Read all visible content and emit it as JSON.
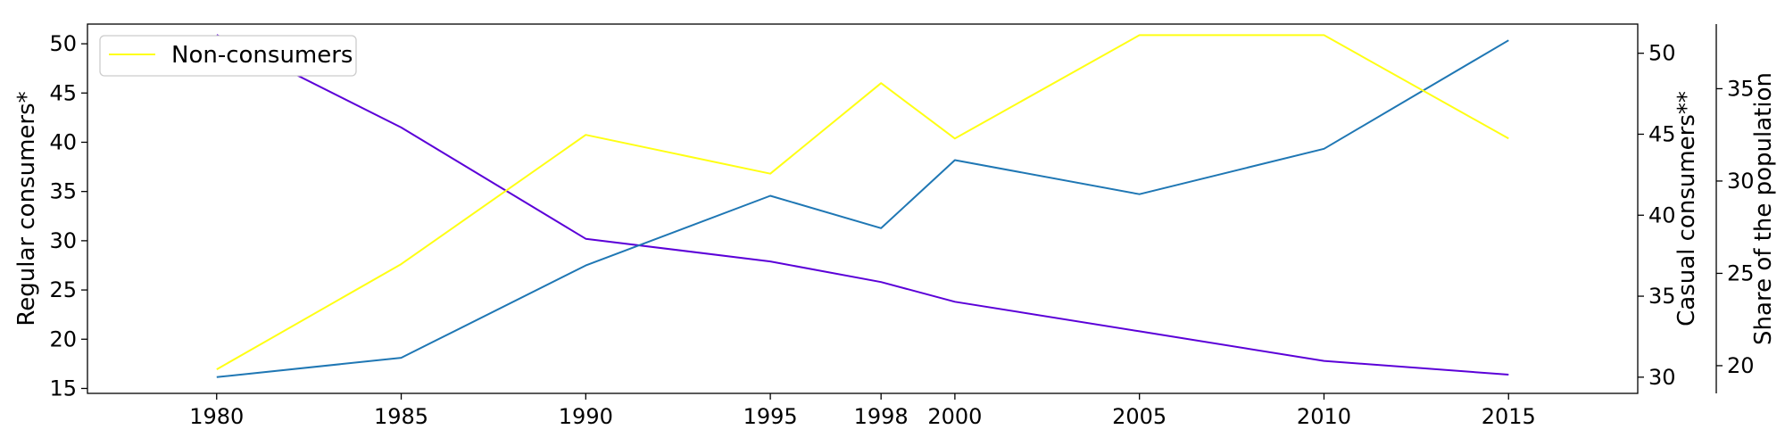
{
  "chart_data": {
    "type": "line",
    "x": [
      1980,
      1985,
      1990,
      1995,
      1998,
      2000,
      2005,
      2010,
      2015
    ],
    "xticks": [
      "1980",
      "1985",
      "1990",
      "1995",
      "1998",
      "2000",
      "2005",
      "2010",
      "2015"
    ],
    "xlim": [
      1976.5,
      2018.5
    ],
    "title": "",
    "xlabel": "",
    "grid": false,
    "legend_position": "top-left",
    "axes": {
      "left": {
        "label": "Regular consumers*",
        "ylim": [
          14.5,
          52.0
        ],
        "ticks": [
          "15",
          "20",
          "25",
          "30",
          "35",
          "40",
          "45",
          "50"
        ]
      },
      "right1": {
        "label": "Casual consumers**",
        "ylim": [
          29.0,
          51.8
        ],
        "ticks": [
          "30",
          "35",
          "40",
          "45",
          "50"
        ]
      },
      "right2": {
        "label": "Share of the population",
        "ylim": [
          18.5,
          38.5
        ],
        "ticks": [
          "20",
          "25",
          "30",
          "35"
        ]
      }
    },
    "series": [
      {
        "axis": "left",
        "color": "#5b00d8",
        "values": [
          50.9,
          41.5,
          30.2,
          27.9,
          25.8,
          23.8,
          20.8,
          17.8,
          16.4
        ]
      },
      {
        "axis": "right1",
        "color": "#1f77b4",
        "values": [
          30.0,
          31.2,
          36.9,
          41.2,
          39.2,
          43.4,
          41.3,
          44.1,
          50.8
        ]
      },
      {
        "name": "Non-consumers",
        "axis": "right2",
        "color": "#ffff14",
        "values": [
          19.8,
          25.5,
          32.5,
          30.4,
          35.3,
          32.3,
          37.9,
          37.9,
          32.3
        ]
      }
    ]
  }
}
